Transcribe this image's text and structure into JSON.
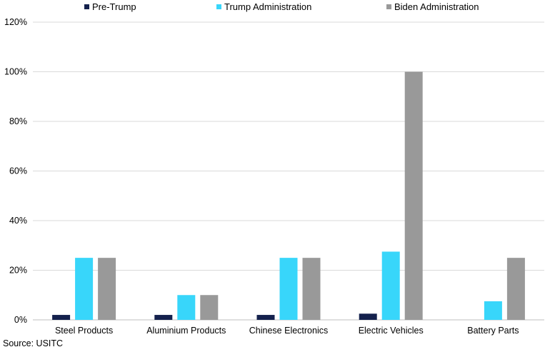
{
  "chart_data": {
    "type": "bar",
    "categories": [
      "Steel Products",
      "Aluminium Products",
      "Chinese Electronics",
      "Electric Vehicles",
      "Battery Parts"
    ],
    "series": [
      {
        "name": "Pre-Trump",
        "color": "#14214d",
        "values": [
          2,
          2,
          2,
          2.5,
          0
        ]
      },
      {
        "name": "Trump Administration",
        "color": "#38d6fa",
        "values": [
          25,
          10,
          25,
          27.5,
          7.5
        ]
      },
      {
        "name": "Biden Administration",
        "color": "#999999",
        "values": [
          25,
          10,
          25,
          100,
          25
        ]
      }
    ],
    "yticks": [
      "0%",
      "20%",
      "40%",
      "60%",
      "80%",
      "100%",
      "120%"
    ],
    "ylim": [
      0,
      120
    ],
    "grid": true,
    "legend_position": "top",
    "title": "",
    "xlabel": "",
    "ylabel": ""
  },
  "source": "Source: USITC"
}
